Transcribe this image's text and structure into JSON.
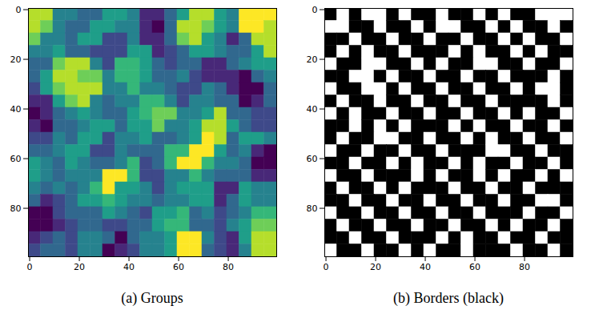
{
  "chart_data": [
    {
      "type": "heatmap",
      "title": "(a) Groups",
      "color": "viridis",
      "xlim": [
        -0.5,
        99.5
      ],
      "ylim": [
        99.5,
        -0.5
      ],
      "xticks": [
        0,
        20,
        40,
        60,
        80
      ],
      "yticks": [
        0,
        20,
        40,
        60,
        80
      ],
      "zlim": [
        0,
        9
      ],
      "z": [
        [
          8,
          8,
          4,
          4,
          3,
          3,
          5,
          5,
          4,
          1,
          1,
          3,
          5,
          8,
          8,
          5,
          4,
          9,
          9,
          9
        ],
        [
          8,
          7,
          4,
          3,
          3,
          5,
          5,
          4,
          4,
          1,
          0,
          3,
          8,
          8,
          7,
          5,
          4,
          9,
          9,
          8
        ],
        [
          7,
          4,
          4,
          3,
          5,
          5,
          2,
          2,
          4,
          1,
          1,
          3,
          7,
          8,
          5,
          4,
          1,
          3,
          8,
          8
        ],
        [
          4,
          4,
          5,
          3,
          3,
          2,
          2,
          2,
          5,
          5,
          1,
          2,
          3,
          5,
          5,
          4,
          3,
          3,
          5,
          8
        ],
        [
          3,
          3,
          7,
          8,
          8,
          4,
          2,
          6,
          6,
          5,
          3,
          2,
          3,
          3,
          1,
          1,
          3,
          4,
          5,
          5
        ],
        [
          3,
          5,
          8,
          8,
          7,
          7,
          4,
          6,
          6,
          5,
          3,
          3,
          4,
          2,
          1,
          1,
          1,
          0,
          3,
          4
        ],
        [
          2,
          5,
          7,
          8,
          8,
          8,
          4,
          4,
          6,
          4,
          4,
          3,
          2,
          2,
          4,
          3,
          1,
          0,
          0,
          3
        ],
        [
          1,
          1,
          5,
          7,
          8,
          4,
          3,
          4,
          4,
          6,
          6,
          4,
          2,
          4,
          4,
          3,
          3,
          0,
          1,
          3
        ],
        [
          0,
          1,
          3,
          4,
          5,
          4,
          3,
          3,
          5,
          6,
          7,
          7,
          4,
          4,
          5,
          8,
          3,
          3,
          2,
          2
        ],
        [
          1,
          0,
          3,
          3,
          4,
          5,
          5,
          3,
          5,
          5,
          7,
          4,
          4,
          5,
          8,
          8,
          5,
          3,
          2,
          2
        ],
        [
          2,
          2,
          4,
          3,
          5,
          5,
          2,
          4,
          4,
          5,
          3,
          3,
          4,
          5,
          9,
          8,
          3,
          5,
          5,
          4
        ],
        [
          3,
          3,
          4,
          5,
          5,
          2,
          2,
          4,
          3,
          3,
          3,
          6,
          6,
          9,
          9,
          5,
          3,
          4,
          1,
          0
        ],
        [
          5,
          4,
          3,
          5,
          4,
          3,
          3,
          4,
          6,
          2,
          3,
          6,
          9,
          9,
          6,
          4,
          4,
          3,
          0,
          0
        ],
        [
          5,
          4,
          3,
          4,
          4,
          4,
          9,
          9,
          6,
          2,
          2,
          4,
          4,
          6,
          4,
          3,
          3,
          3,
          1,
          1
        ],
        [
          4,
          3,
          4,
          3,
          4,
          6,
          9,
          5,
          5,
          4,
          2,
          4,
          5,
          5,
          5,
          1,
          1,
          5,
          4,
          4
        ],
        [
          3,
          1,
          2,
          3,
          5,
          5,
          6,
          5,
          4,
          4,
          3,
          4,
          4,
          5,
          5,
          1,
          3,
          5,
          4,
          4
        ],
        [
          0,
          0,
          2,
          3,
          3,
          3,
          5,
          4,
          3,
          2,
          5,
          5,
          6,
          3,
          4,
          2,
          3,
          4,
          6,
          6
        ],
        [
          0,
          0,
          1,
          2,
          3,
          3,
          2,
          2,
          3,
          3,
          5,
          6,
          6,
          3,
          3,
          2,
          4,
          5,
          7,
          7
        ],
        [
          1,
          2,
          3,
          2,
          4,
          4,
          3,
          0,
          3,
          4,
          4,
          5,
          9,
          9,
          4,
          2,
          1,
          5,
          8,
          8
        ],
        [
          2,
          3,
          3,
          2,
          4,
          4,
          0,
          1,
          2,
          4,
          4,
          5,
          9,
          9,
          3,
          2,
          1,
          4,
          8,
          8
        ]
      ]
    },
    {
      "type": "heatmap",
      "title": "(b) Borders (black)",
      "color": "greys",
      "xlim": [
        -0.5,
        99.5
      ],
      "ylim": [
        99.5,
        -0.5
      ],
      "xticks": [
        0,
        20,
        40,
        60,
        80
      ],
      "yticks": [
        0,
        20,
        40,
        60,
        80
      ],
      "zlim": [
        0,
        1
      ],
      "z": [
        [
          1,
          0,
          1,
          0,
          0,
          1,
          0,
          1,
          1,
          0,
          1,
          1,
          0,
          1,
          0,
          1,
          1,
          0,
          0,
          0
        ],
        [
          0,
          0,
          1,
          1,
          0,
          1,
          1,
          0,
          1,
          0,
          0,
          1,
          1,
          0,
          1,
          0,
          1,
          1,
          0,
          1
        ],
        [
          1,
          1,
          0,
          1,
          1,
          0,
          1,
          1,
          0,
          1,
          1,
          0,
          1,
          1,
          0,
          1,
          0,
          1,
          1,
          0
        ],
        [
          1,
          0,
          1,
          0,
          1,
          1,
          0,
          1,
          1,
          1,
          0,
          1,
          0,
          1,
          1,
          0,
          1,
          0,
          1,
          1
        ],
        [
          0,
          1,
          1,
          0,
          0,
          1,
          1,
          0,
          1,
          0,
          1,
          1,
          0,
          0,
          1,
          1,
          0,
          1,
          1,
          0
        ],
        [
          1,
          1,
          0,
          0,
          1,
          0,
          1,
          1,
          0,
          1,
          1,
          0,
          1,
          1,
          0,
          1,
          1,
          1,
          0,
          1
        ],
        [
          0,
          1,
          1,
          0,
          0,
          1,
          0,
          1,
          1,
          0,
          1,
          1,
          0,
          1,
          1,
          0,
          1,
          0,
          0,
          1
        ],
        [
          1,
          0,
          1,
          1,
          0,
          1,
          1,
          0,
          1,
          1,
          0,
          1,
          1,
          0,
          1,
          1,
          1,
          1,
          0,
          1
        ],
        [
          0,
          1,
          0,
          1,
          1,
          0,
          1,
          1,
          0,
          1,
          1,
          0,
          1,
          1,
          0,
          1,
          0,
          1,
          1,
          0
        ],
        [
          1,
          1,
          0,
          1,
          0,
          1,
          0,
          1,
          1,
          1,
          0,
          1,
          0,
          1,
          1,
          0,
          1,
          1,
          0,
          1
        ],
        [
          1,
          0,
          1,
          1,
          0,
          0,
          1,
          1,
          0,
          1,
          1,
          0,
          1,
          0,
          1,
          1,
          0,
          1,
          1,
          0
        ],
        [
          0,
          1,
          1,
          0,
          1,
          1,
          0,
          1,
          1,
          0,
          1,
          1,
          1,
          0,
          0,
          1,
          1,
          0,
          1,
          1
        ],
        [
          1,
          1,
          0,
          1,
          1,
          0,
          1,
          0,
          1,
          1,
          0,
          1,
          0,
          1,
          1,
          0,
          1,
          1,
          0,
          1
        ],
        [
          0,
          1,
          1,
          0,
          1,
          1,
          1,
          0,
          1,
          0,
          1,
          1,
          0,
          1,
          0,
          1,
          1,
          0,
          1,
          0
        ],
        [
          1,
          0,
          1,
          1,
          0,
          1,
          0,
          1,
          1,
          1,
          0,
          1,
          1,
          0,
          1,
          1,
          0,
          1,
          1,
          1
        ],
        [
          1,
          1,
          0,
          1,
          1,
          0,
          1,
          1,
          0,
          1,
          1,
          0,
          1,
          1,
          0,
          1,
          1,
          0,
          0,
          1
        ],
        [
          0,
          1,
          1,
          0,
          1,
          1,
          0,
          1,
          1,
          0,
          1,
          1,
          0,
          1,
          1,
          1,
          0,
          1,
          1,
          0
        ],
        [
          1,
          0,
          1,
          1,
          0,
          1,
          1,
          0,
          1,
          1,
          0,
          1,
          1,
          0,
          1,
          0,
          1,
          1,
          0,
          1
        ],
        [
          1,
          1,
          0,
          1,
          1,
          0,
          1,
          1,
          1,
          0,
          1,
          0,
          1,
          1,
          0,
          1,
          1,
          0,
          1,
          1
        ],
        [
          0,
          1,
          1,
          0,
          1,
          1,
          0,
          1,
          0,
          1,
          1,
          0,
          1,
          1,
          1,
          0,
          1,
          1,
          0,
          1
        ]
      ]
    }
  ]
}
